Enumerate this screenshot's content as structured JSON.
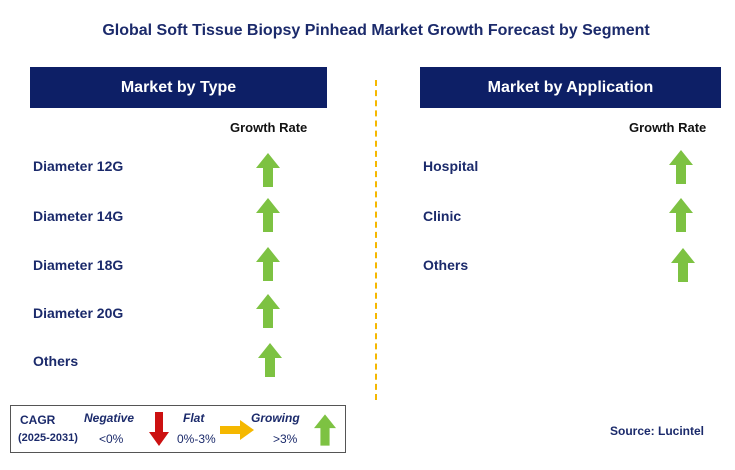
{
  "title": "Global Soft Tissue Biopsy Pinhead Market Growth Forecast by Segment",
  "left_panel": {
    "header": "Market by Type",
    "column_header": "Growth Rate",
    "rows": [
      {
        "label": "Diameter 12G",
        "trend": "growing"
      },
      {
        "label": "Diameter 14G",
        "trend": "growing"
      },
      {
        "label": "Diameter 18G",
        "trend": "growing"
      },
      {
        "label": "Diameter 20G",
        "trend": "growing"
      },
      {
        "label": "Others",
        "trend": "growing"
      }
    ]
  },
  "right_panel": {
    "header": "Market by Application",
    "column_header": "Growth Rate",
    "rows": [
      {
        "label": "Hospital",
        "trend": "growing"
      },
      {
        "label": "Clinic",
        "trend": "growing"
      },
      {
        "label": "Others",
        "trend": "growing"
      }
    ]
  },
  "legend": {
    "cagr_label": "CAGR",
    "period": "(2025-2031)",
    "negative_label": "Negative",
    "negative_range": "<0%",
    "flat_label": "Flat",
    "flat_range": "0%-3%",
    "growing_label": "Growing",
    "growing_range": ">3%"
  },
  "source": "Source: Lucintel",
  "colors": {
    "header_bg": "#0d1f66",
    "text_navy": "#1b2a6b",
    "arrow_green": "#7dc242",
    "arrow_red": "#cc1111",
    "arrow_yellow": "#f5b800",
    "divider": "#f5b800"
  }
}
